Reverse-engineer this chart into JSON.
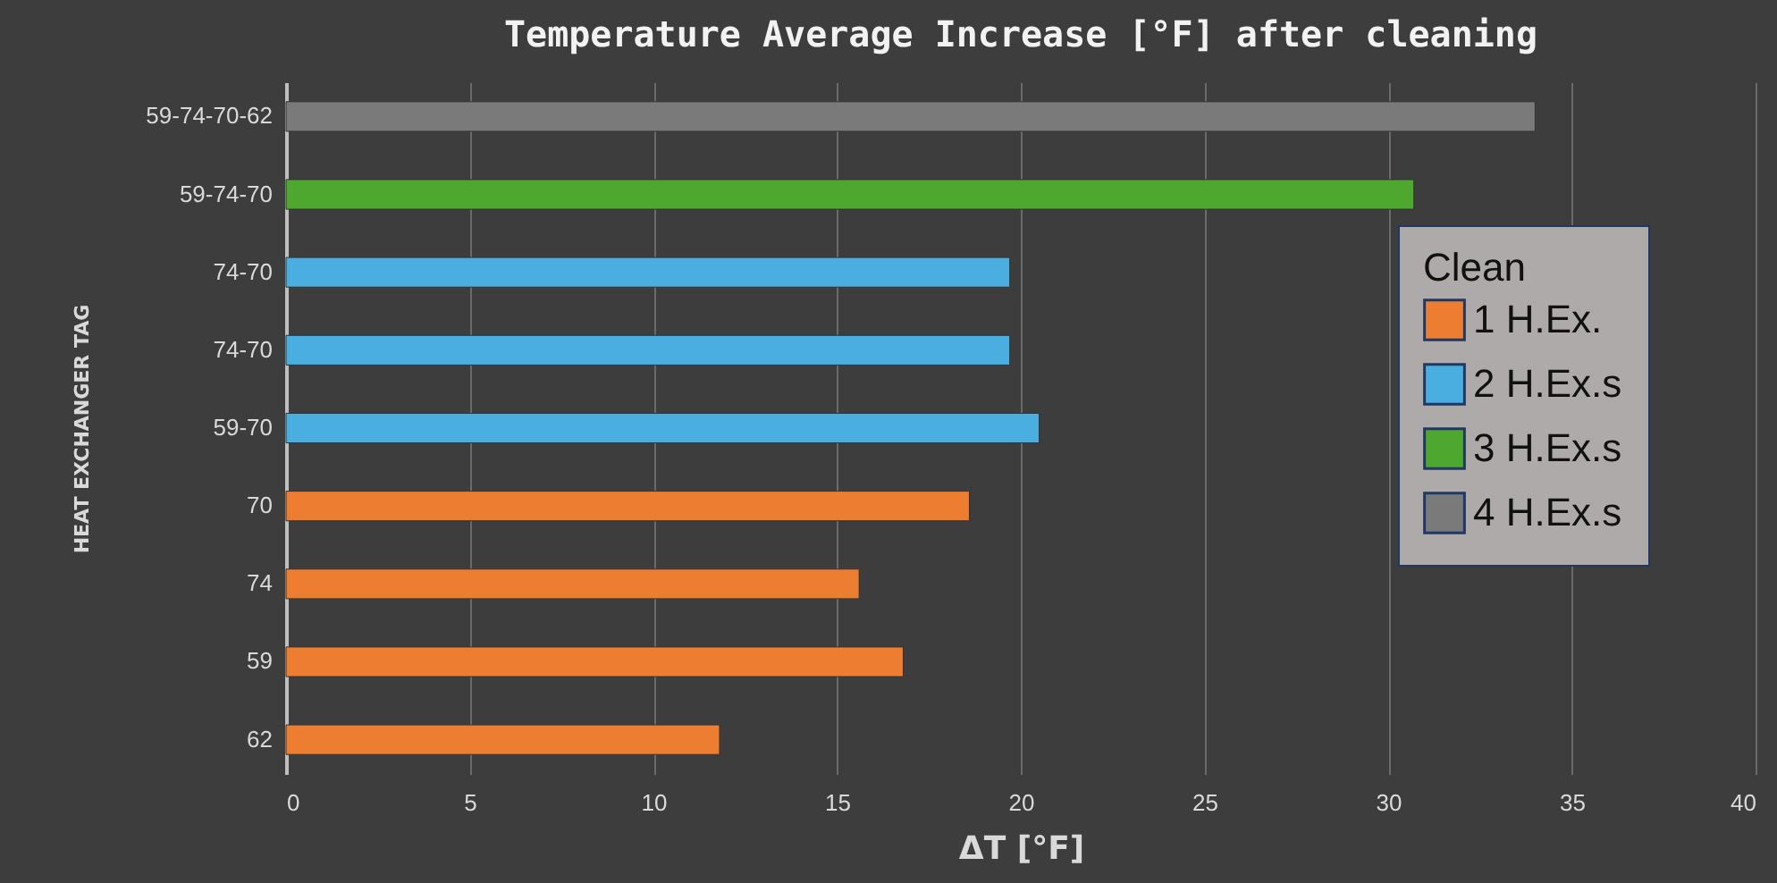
{
  "chart_data": {
    "type": "bar",
    "orientation": "horizontal",
    "title": "Temperature Average Increase [°F] after cleaning",
    "xlabel": "ΔT [°F]",
    "ylabel": "HEAT EXCHANGER TAG",
    "legend_title": "Clean",
    "legend": "right",
    "categories": [
      "59-74-70-62",
      "59-74-70",
      "74-70",
      "74-70",
      "59-70",
      "70",
      "74",
      "59",
      "62"
    ],
    "series": [
      {
        "name": "1 H.Ex.",
        "color": "#ed7d31",
        "values": [
          null,
          null,
          null,
          null,
          null,
          18.6,
          15.6,
          16.8,
          11.8
        ]
      },
      {
        "name": "2 H.Ex.s",
        "color": "#4aaee0",
        "values": [
          null,
          null,
          19.7,
          19.7,
          20.5,
          null,
          null,
          null,
          null
        ]
      },
      {
        "name": "3 H.Ex.s",
        "color": "#4ea72e",
        "values": [
          null,
          30.7,
          null,
          null,
          null,
          null,
          null,
          null,
          null
        ]
      },
      {
        "name": "4 H.Ex.s",
        "color": "#7a7a7a",
        "values": [
          34,
          null,
          null,
          null,
          null,
          null,
          null,
          null,
          null
        ]
      }
    ],
    "xlim": [
      0,
      40
    ],
    "xticks": [
      0,
      5,
      10,
      15,
      20,
      25,
      30,
      35,
      40
    ],
    "grid": "x"
  }
}
